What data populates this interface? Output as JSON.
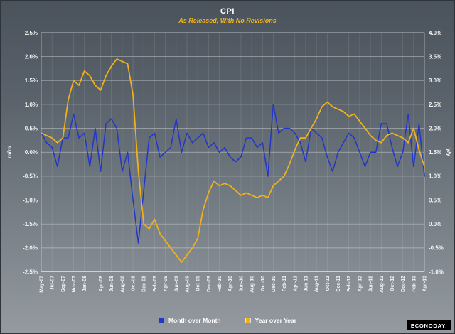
{
  "header": {
    "title": "CPI",
    "subtitle": "As Released, With No Revisions"
  },
  "logo": {
    "text": "ECONODAY",
    "dot": "."
  },
  "colors": {
    "mm_line": "#2436c7",
    "yy_line": "#efb11d",
    "background_top": "#4a535c",
    "background_bottom": "#949aa0",
    "grid": "#ffffff",
    "text": "#f2f2f2",
    "subtitle": "#f2b51d"
  },
  "chart_data": {
    "type": "line",
    "title": "CPI",
    "subtitle": "As Released, With No Revisions",
    "grid": true,
    "legend_position": "bottom",
    "left_axis": {
      "label": "m/m",
      "min": -2.5,
      "max": 2.5,
      "tick_step": 0.5,
      "ticks": [
        "2.5%",
        "2.0%",
        "1.5%",
        "1.0%",
        "0.5%",
        "0.0%",
        "-0.5%",
        "-1.0%",
        "-1.5%",
        "-2.0%",
        "-2.5%"
      ]
    },
    "right_axis": {
      "label": "y/y",
      "min": -1.0,
      "max": 4.0,
      "tick_step": 0.5,
      "ticks": [
        "4.0%",
        "3.5%",
        "3.0%",
        "2.5%",
        "2.0%",
        "1.5%",
        "1.0%",
        "0.5%",
        "0.0%",
        "-0.5%",
        "-1.0%"
      ]
    },
    "x": [
      "May-07",
      "Jun-07",
      "Jul-07",
      "Aug-07",
      "Sep-07",
      "Oct-07",
      "Nov-07",
      "Dec-07",
      "Jan-08",
      "Feb-08",
      "Mar-08",
      "Apr-08",
      "May-08",
      "Jun-08",
      "Jul-08",
      "Aug-08",
      "Sep-08",
      "Oct-08",
      "Nov-08",
      "Dec-08",
      "Jan-09",
      "Feb-09",
      "Mar-09",
      "Apr-09",
      "May-09",
      "Jun-09",
      "Jul-09",
      "Aug-09",
      "Sep-09",
      "Oct-09",
      "Nov-09",
      "Dec-09",
      "Jan-10",
      "Feb-10",
      "Mar-10",
      "Apr-10",
      "May-10",
      "Jun-10",
      "Jul-10",
      "Aug-10",
      "Sep-10",
      "Oct-10",
      "Nov-10",
      "Dec-10",
      "Jan-11",
      "Feb-11",
      "Mar-11",
      "Apr-11",
      "May-11",
      "Jun-11",
      "Jul-11",
      "Aug-11",
      "Sep-11",
      "Oct-11",
      "Nov-11",
      "Dec-11",
      "Jan-12",
      "Feb-12",
      "Mar-12",
      "Apr-12",
      "May-12",
      "Jun-12",
      "Jul-12",
      "Aug-12",
      "Sep-12",
      "Oct-12",
      "Nov-12",
      "Dec-12",
      "Jan-13",
      "Feb-13",
      "Mar-13",
      "Apr-13"
    ],
    "x_tick_labels": [
      "May-07",
      "Jul-07",
      "Sep-07",
      "Nov-07",
      "Jan-08",
      "Apr-08",
      "Jun-08",
      "Aug-08",
      "Oct-08",
      "Dec-08",
      "Feb-09",
      "Apr-09",
      "Jun-09",
      "Aug-09",
      "Oct-09",
      "Dec-09",
      "Feb-10",
      "Apr-10",
      "Jun-10",
      "Aug-10",
      "Oct-10",
      "Dec-10",
      "Feb-11",
      "Apr-11",
      "Jun-11",
      "Aug-11",
      "Oct-11",
      "Dec-11",
      "Feb-12",
      "Apr-12",
      "Jun-12",
      "Aug-12",
      "Oct-12",
      "Dec-12",
      "Feb-13",
      "Apr-13"
    ],
    "series": [
      {
        "name": "Month over Month",
        "axis": "left",
        "color": "#2436c7",
        "values": [
          0.4,
          0.2,
          0.1,
          -0.3,
          0.3,
          0.3,
          0.8,
          0.3,
          0.4,
          -0.3,
          0.5,
          -0.4,
          0.6,
          0.7,
          0.5,
          -0.4,
          0.0,
          -1.0,
          -1.9,
          -0.8,
          0.3,
          0.4,
          -0.1,
          0.0,
          0.1,
          0.7,
          0.0,
          0.4,
          0.2,
          0.3,
          0.4,
          0.1,
          0.2,
          0.0,
          0.1,
          -0.1,
          -0.2,
          -0.1,
          0.3,
          0.3,
          0.1,
          0.2,
          -0.5,
          1.0,
          0.4,
          0.5,
          0.5,
          0.4,
          0.2,
          -0.2,
          0.5,
          0.4,
          0.3,
          -0.1,
          -0.4,
          0.0,
          0.2,
          0.4,
          0.3,
          0.0,
          -0.3,
          0.0,
          0.0,
          0.6,
          0.6,
          0.1,
          -0.3,
          0.0,
          0.8,
          -0.3,
          0.6,
          -0.5
        ]
      },
      {
        "name": "Year over Year",
        "axis": "right",
        "color": "#efb11d",
        "values": [
          1.9,
          1.85,
          1.8,
          1.7,
          1.8,
          2.6,
          3.0,
          2.9,
          3.2,
          3.1,
          2.9,
          2.8,
          3.1,
          3.3,
          3.45,
          3.4,
          3.35,
          2.7,
          1.1,
          0.0,
          -0.1,
          0.1,
          -0.2,
          -0.35,
          -0.5,
          -0.65,
          -0.8,
          -0.65,
          -0.5,
          -0.3,
          0.3,
          0.65,
          0.9,
          0.8,
          0.85,
          0.8,
          0.7,
          0.6,
          0.65,
          0.6,
          0.55,
          0.6,
          0.55,
          0.8,
          0.9,
          1.0,
          1.25,
          1.55,
          1.8,
          1.8,
          2.0,
          2.2,
          2.45,
          2.55,
          2.45,
          2.4,
          2.35,
          2.25,
          2.3,
          2.15,
          2.0,
          1.85,
          1.75,
          1.7,
          1.85,
          1.9,
          1.85,
          1.8,
          1.7,
          2.0,
          1.55,
          1.2
        ]
      }
    ]
  }
}
